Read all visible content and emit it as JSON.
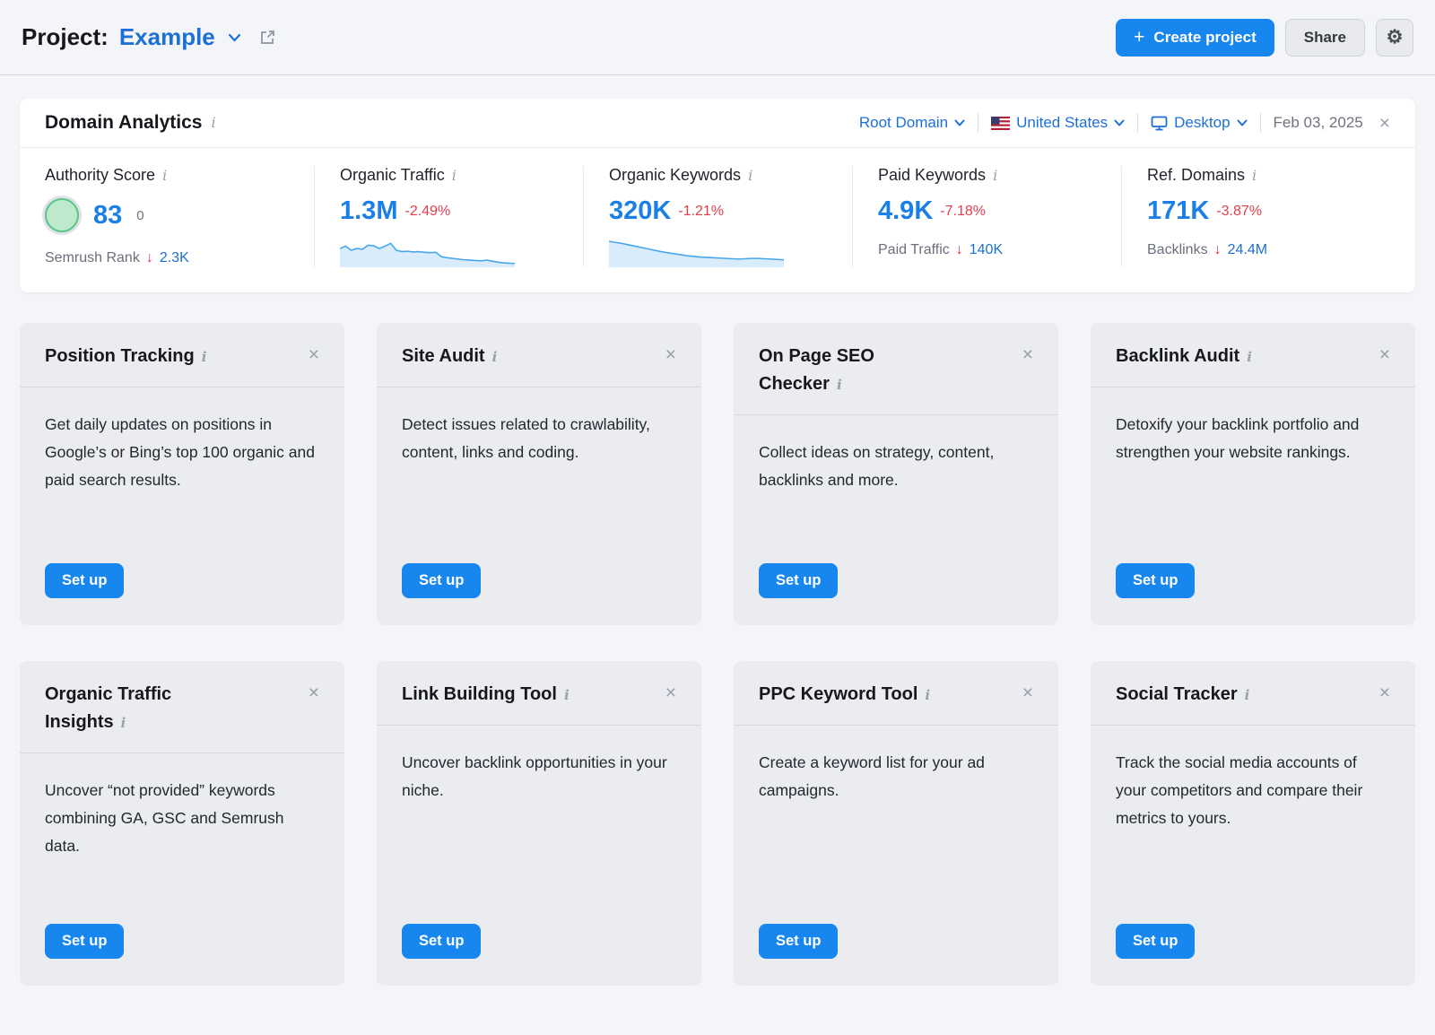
{
  "icons": {
    "plus": "+",
    "gear": "⚙",
    "close": "×",
    "info": "i",
    "down_arrow": "↓"
  },
  "colors": {
    "accent_blue": "#1787ef",
    "link_blue": "#1d6fd8",
    "value_blue": "#1a80e8",
    "negative_red": "#e53e4b",
    "score_green": "#57c584",
    "card_gray": "#ebecf0"
  },
  "header": {
    "project_label": "Project:",
    "project_name": "Example",
    "create_project_label": "Create project",
    "share_label": "Share"
  },
  "domain_analytics": {
    "title": "Domain Analytics",
    "filters": {
      "root_domain": "Root Domain",
      "country": "United States",
      "device": "Desktop",
      "date": "Feb 03, 2025"
    },
    "metrics": [
      {
        "label": "Authority Score",
        "value": "83",
        "value_note": "0",
        "sub_label": "Semrush Rank",
        "sub_value": "2.3K"
      },
      {
        "label": "Organic Traffic",
        "value": "1.3M",
        "delta": "-2.49%",
        "spark": [
          55,
          62,
          50,
          55,
          53,
          65,
          63,
          55,
          62,
          70,
          50,
          46,
          47,
          45,
          46,
          44,
          43,
          44,
          31,
          28,
          26,
          24,
          22,
          21,
          20,
          19,
          21,
          18,
          15,
          13,
          12,
          11
        ]
      },
      {
        "label": "Organic Keywords",
        "value": "320K",
        "delta": "-1.21%",
        "spark": [
          76,
          73,
          70,
          66,
          62,
          58,
          54,
          50,
          46,
          43,
          40,
          37,
          34,
          32,
          30,
          29,
          28,
          27,
          26,
          25,
          24,
          25,
          26,
          26,
          25,
          24,
          23,
          22
        ]
      },
      {
        "label": "Paid Keywords",
        "value": "4.9K",
        "delta": "-7.18%",
        "sub_label": "Paid Traffic",
        "sub_value": "140K"
      },
      {
        "label": "Ref. Domains",
        "value": "171K",
        "delta": "-3.87%",
        "sub_label": "Backlinks",
        "sub_value": "24.4M"
      }
    ]
  },
  "cards": [
    {
      "title": "Position Tracking",
      "description": "Get daily updates on positions in Google’s or Bing’s top 100 organic and paid search results.",
      "button_label": "Set up"
    },
    {
      "title": "Site Audit",
      "description": "Detect issues related to crawlability, content, links and coding.",
      "button_label": "Set up"
    },
    {
      "title": "On Page SEO Checker",
      "description": "Collect ideas on strategy, content, backlinks and more.",
      "button_label": "Set up"
    },
    {
      "title": "Backlink Audit",
      "description": "Detoxify your backlink portfolio and strengthen your website rankings.",
      "button_label": "Set up"
    },
    {
      "title": "Organic Traffic Insights",
      "description": "Uncover “not provided” keywords combining GA, GSC and Semrush data.",
      "button_label": "Set up"
    },
    {
      "title": "Link Building Tool",
      "description": "Uncover backlink opportunities in your niche.",
      "button_label": "Set up"
    },
    {
      "title": "PPC Keyword Tool",
      "description": "Create a keyword list for your ad campaigns.",
      "button_label": "Set up"
    },
    {
      "title": "Social Tracker",
      "description": "Track the social media accounts of your competitors and compare their metrics to yours.",
      "button_label": "Set up"
    }
  ]
}
